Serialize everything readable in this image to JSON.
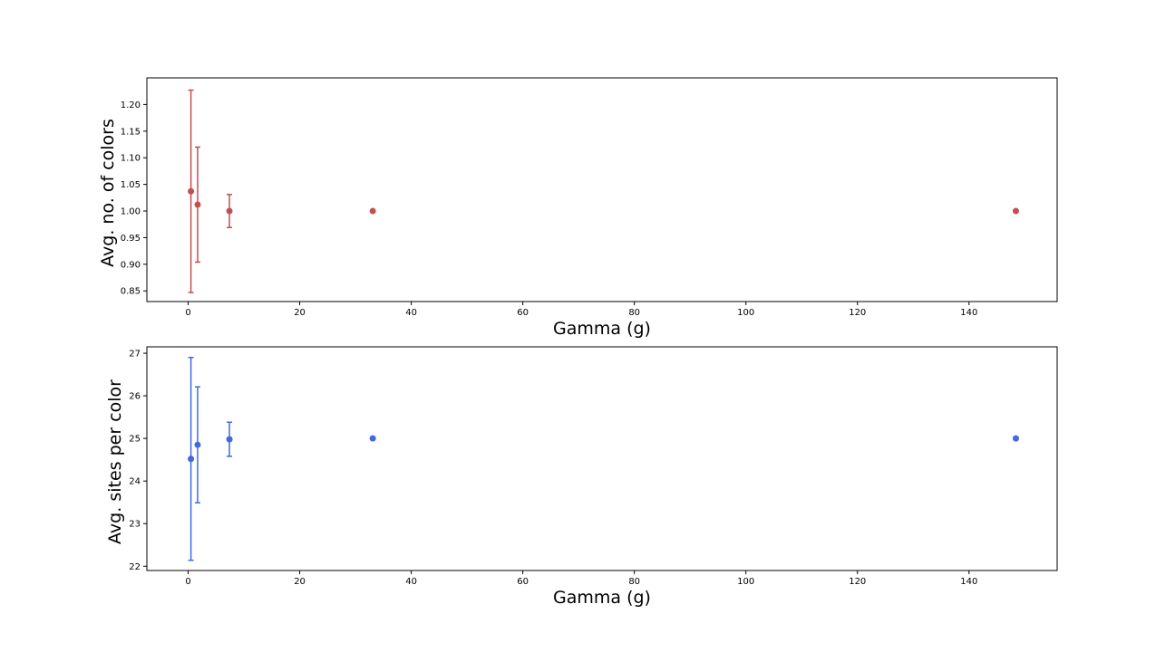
{
  "chart_data": [
    {
      "type": "scatter",
      "title": "",
      "xlabel": "Gamma (g)",
      "ylabel": "Avg. no. of colors",
      "xlim": [
        -7.4,
        155.8
      ],
      "ylim": [
        0.83,
        1.25
      ],
      "xticks": [
        0,
        20,
        40,
        60,
        80,
        100,
        120,
        140
      ],
      "yticks": [
        0.85,
        0.9,
        0.95,
        1.0,
        1.05,
        1.1,
        1.15,
        1.2
      ],
      "ytick_format": 2,
      "grid": false,
      "color": "#c44e52",
      "series": [
        {
          "x": [
            0.5,
            1.7,
            7.4,
            33.1,
            148.4
          ],
          "y": [
            1.037,
            1.012,
            1.0,
            1.0,
            1.0
          ],
          "yerr": [
            0.19,
            0.108,
            0.031,
            0,
            0
          ]
        }
      ]
    },
    {
      "type": "scatter",
      "title": "",
      "xlabel": "Gamma (g)",
      "ylabel": "Avg. sites per color",
      "xlim": [
        -7.4,
        155.8
      ],
      "ylim": [
        21.9,
        27.15
      ],
      "xticks": [
        0,
        20,
        40,
        60,
        80,
        100,
        120,
        140
      ],
      "yticks": [
        22,
        23,
        24,
        25,
        26,
        27
      ],
      "ytick_format": 0,
      "grid": false,
      "color": "#4169e1",
      "series": [
        {
          "x": [
            0.5,
            1.7,
            7.4,
            33.1,
            148.4
          ],
          "y": [
            24.52,
            24.85,
            24.98,
            25.0,
            25.0
          ],
          "yerr": [
            2.38,
            1.36,
            0.4,
            0,
            0
          ]
        }
      ]
    }
  ]
}
